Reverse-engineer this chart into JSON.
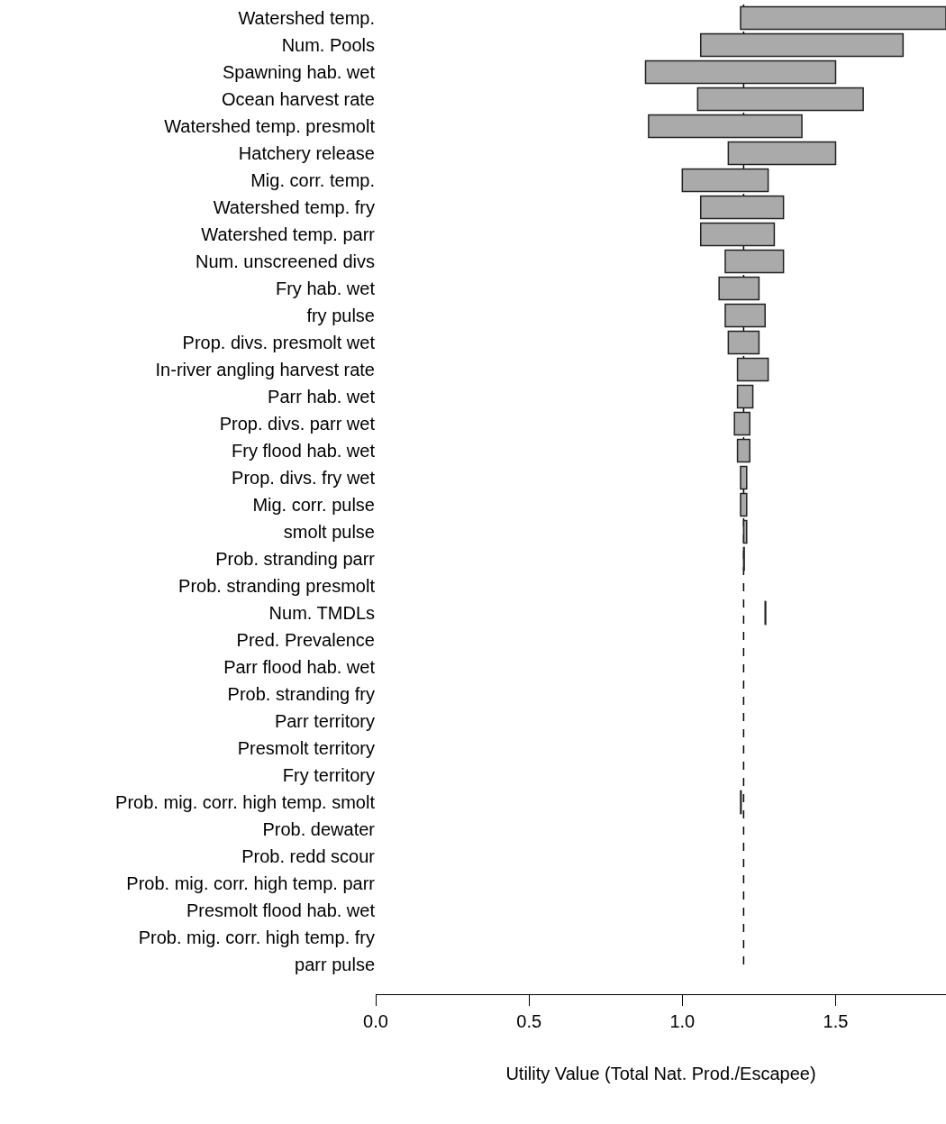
{
  "chart_data": {
    "type": "bar",
    "orientation": "horizontal",
    "xlabel": "Utility Value (Total Nat. Prod./Escapee)",
    "categories": [
      "Watershed temp.",
      "Num. Pools",
      "Spawning hab. wet",
      "Ocean harvest rate",
      "Watershed temp. presmolt",
      "Hatchery release",
      "Mig. corr. temp.",
      "Watershed temp. fry",
      "Watershed temp. parr",
      "Num. unscreened divs",
      "Fry hab. wet",
      "fry pulse",
      "Prop. divs. presmolt wet",
      "In-river angling harvest rate",
      "Parr hab. wet",
      "Prop. divs. parr wet",
      "Fry flood hab. wet",
      "Prop. divs. fry wet",
      "Mig. corr. pulse",
      "smolt pulse",
      "Prob. stranding parr",
      "Prob. stranding presmolt",
      "Num. TMDLs",
      "Pred. Prevalence",
      "Parr flood hab. wet",
      "Prob. stranding fry",
      "Parr territory",
      "Presmolt territory",
      "Fry territory",
      "Prob. mig. corr. high temp. smolt",
      "Prob. dewater",
      "Prob. redd scour",
      "Prob. mig. corr. high temp. parr",
      "Presmolt flood hab. wet",
      "Prob. mig. corr. high temp. fry",
      "parr pulse"
    ],
    "base": [
      1.19,
      1.06,
      0.88,
      1.05,
      0.89,
      1.15,
      1.0,
      1.06,
      1.06,
      1.14,
      1.12,
      1.14,
      1.15,
      1.18,
      1.18,
      1.17,
      1.18,
      1.19,
      1.19,
      1.2,
      1.2,
      null,
      1.27,
      null,
      null,
      null,
      null,
      null,
      null,
      1.19,
      null,
      null,
      null,
      null,
      null,
      null
    ],
    "values": [
      0.67,
      0.66,
      0.62,
      0.54,
      0.5,
      0.35,
      0.28,
      0.27,
      0.24,
      0.19,
      0.13,
      0.13,
      0.1,
      0.1,
      0.05,
      0.05,
      0.04,
      0.02,
      0.02,
      0.01,
      0.002,
      null,
      0.002,
      null,
      null,
      null,
      null,
      null,
      null,
      0.002,
      null,
      null,
      null,
      null,
      null,
      null
    ],
    "color": "#aaaaaa",
    "xlim": [
      0,
      1.86
    ],
    "xticks": [
      {
        "value": 0,
        "label": "0.0"
      },
      0.5,
      {
        "value": 1,
        "label": "1.0"
      },
      1.5
    ],
    "ref_lines": [
      {
        "axis": "x",
        "value": 1.2,
        "color": "#000000",
        "line_style": "dashed"
      }
    ],
    "legend": false
  }
}
